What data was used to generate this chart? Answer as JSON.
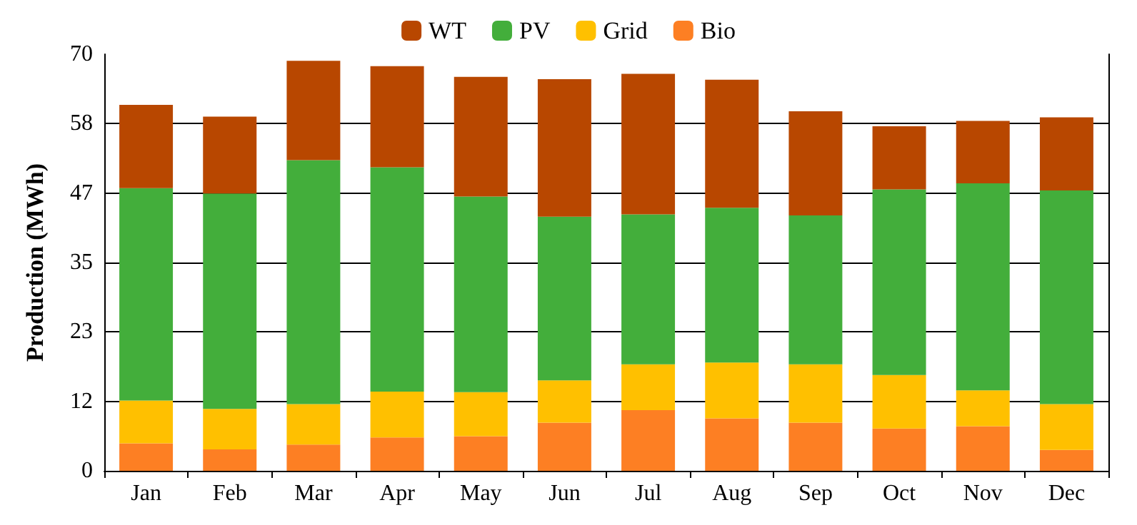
{
  "chart_data": {
    "type": "bar",
    "stacked": true,
    "ylabel": "Production (MWh)",
    "categories": [
      "Jan",
      "Feb",
      "Mar",
      "Apr",
      "May",
      "Jun",
      "Jul",
      "Aug",
      "Sep",
      "Oct",
      "Nov",
      "Dec"
    ],
    "series": [
      {
        "name": "Bio",
        "color": "#fd7f23",
        "values": [
          4.6,
          3.6,
          4.4,
          5.6,
          5.8,
          8.1,
          10.2,
          8.8,
          8.1,
          7.1,
          7.5,
          3.5
        ]
      },
      {
        "name": "Grid",
        "color": "#ffc000",
        "values": [
          7.2,
          6.8,
          6.8,
          7.7,
          7.4,
          7.1,
          7.7,
          9.4,
          9.8,
          9.0,
          6.0,
          7.7
        ]
      },
      {
        "name": "PV",
        "color": "#43ae3b",
        "values": [
          35.7,
          36.2,
          41.0,
          37.7,
          32.9,
          27.5,
          25.2,
          26.0,
          25.0,
          31.2,
          34.8,
          35.9
        ]
      },
      {
        "name": "WT",
        "color": "#b84700",
        "values": [
          14.0,
          12.9,
          16.7,
          17.0,
          20.1,
          23.1,
          23.6,
          21.5,
          17.5,
          10.6,
          10.5,
          12.3
        ]
      }
    ],
    "ylim": [
      0,
      70
    ],
    "yticks": [
      0,
      {
        "value": 11.67,
        "label": "12"
      },
      {
        "value": 23.33,
        "label": "23"
      },
      35,
      {
        "value": 46.67,
        "label": "47"
      },
      {
        "value": 58.33,
        "label": "58"
      },
      70
    ],
    "grid": "y",
    "legend": "top"
  }
}
